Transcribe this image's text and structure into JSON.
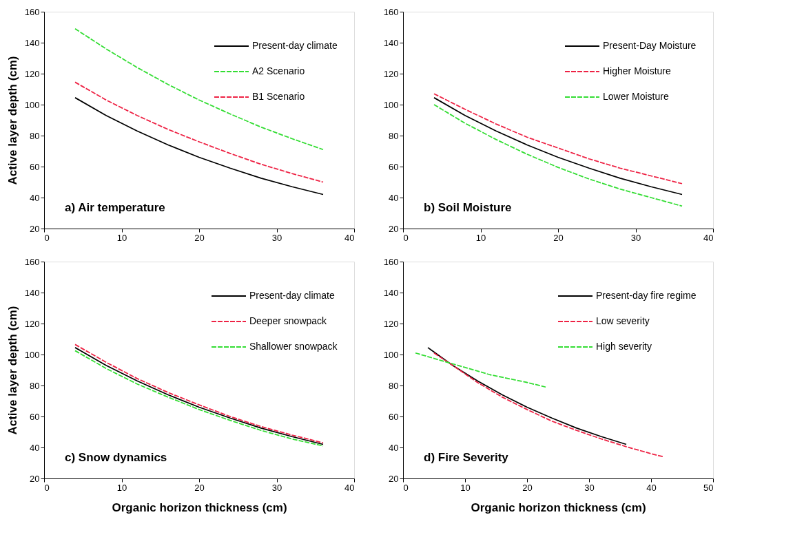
{
  "chart_data": [
    {
      "type": "line",
      "ylabel": "Active layer depth (cm)",
      "xlim": [
        0,
        40
      ],
      "xticks": [
        0,
        10,
        20,
        30,
        40
      ],
      "ylim": [
        20,
        160
      ],
      "yticks": [
        20,
        40,
        60,
        80,
        100,
        120,
        140,
        160
      ],
      "grid": false,
      "legend": "top right",
      "annotations": [
        "a) Air temperature"
      ],
      "x": [
        4,
        8,
        12,
        16,
        20,
        24,
        28,
        32,
        36
      ],
      "series": [
        {
          "name": "Present-day climate",
          "color": "#000000",
          "line_style": "solid",
          "values": [
            104.5,
            93,
            83,
            74,
            66,
            59,
            52.5,
            47,
            42
          ]
        },
        {
          "name": "A2 Scenario",
          "color": "#33dd33",
          "line_style": "dashed",
          "values": [
            149,
            136,
            124,
            113,
            103,
            94,
            85.5,
            78,
            71
          ]
        },
        {
          "name": "B1 Scenario",
          "color": "#ee2244",
          "line_style": "dashed",
          "values": [
            114.5,
            103,
            93,
            84,
            76,
            68.5,
            61.5,
            55.5,
            50
          ]
        }
      ]
    },
    {
      "type": "line",
      "xlim": [
        0,
        40
      ],
      "xticks": [
        0,
        10,
        20,
        30,
        40
      ],
      "ylim": [
        20,
        160
      ],
      "yticks": [
        20,
        40,
        60,
        80,
        100,
        120,
        140,
        160
      ],
      "grid": false,
      "legend": "top right",
      "annotations": [
        "b) Soil Moisture"
      ],
      "x": [
        4,
        8,
        12,
        16,
        20,
        24,
        28,
        32,
        36
      ],
      "series": [
        {
          "name": "Present-Day Moisture",
          "color": "#000000",
          "line_style": "solid",
          "values": [
            104.5,
            93,
            83,
            74,
            66,
            59,
            52.5,
            47,
            42
          ]
        },
        {
          "name": "Higher Moisture",
          "color": "#ee2244",
          "line_style": "dashed",
          "values": [
            107,
            97,
            87.5,
            79,
            72,
            65,
            59,
            54,
            49
          ]
        },
        {
          "name": "Lower Moisture",
          "color": "#33dd33",
          "line_style": "dashed",
          "values": [
            100,
            88,
            77.5,
            68,
            59.5,
            52,
            45.5,
            40,
            34.5
          ]
        }
      ]
    },
    {
      "type": "line",
      "xlabel": "Organic horizon thickness (cm)",
      "ylabel": "Active layer depth (cm)",
      "xlim": [
        0,
        40
      ],
      "xticks": [
        0,
        10,
        20,
        30,
        40
      ],
      "ylim": [
        20,
        160
      ],
      "yticks": [
        20,
        40,
        60,
        80,
        100,
        120,
        140,
        160
      ],
      "grid": false,
      "legend": "top right",
      "annotations": [
        "c) Snow dynamics"
      ],
      "x": [
        4,
        8,
        12,
        16,
        20,
        24,
        28,
        32,
        36
      ],
      "series": [
        {
          "name": "Present-day climate",
          "color": "#000000",
          "line_style": "solid",
          "values": [
            104.5,
            93,
            83,
            74,
            66,
            59,
            52.5,
            47,
            42
          ]
        },
        {
          "name": "Deeper snowpack",
          "color": "#ee2244",
          "line_style": "dashed",
          "values": [
            106.5,
            95,
            84.5,
            75.5,
            67.5,
            60,
            53.5,
            48,
            43
          ]
        },
        {
          "name": "Shallower snowpack",
          "color": "#33dd33",
          "line_style": "dashed",
          "values": [
            102.5,
            91,
            81,
            72.5,
            64.5,
            57.5,
            51,
            45.5,
            41
          ]
        }
      ]
    },
    {
      "type": "line",
      "xlabel": "Organic horizon thickness (cm)",
      "xlim": [
        0,
        50
      ],
      "xticks": [
        0,
        10,
        20,
        30,
        40,
        50
      ],
      "ylim": [
        20,
        160
      ],
      "yticks": [
        20,
        40,
        60,
        80,
        100,
        120,
        140,
        160
      ],
      "grid": false,
      "legend": "top right",
      "annotations": [
        "d) Fire Severity"
      ],
      "x": [
        4,
        8,
        12,
        16,
        20,
        24,
        28,
        32,
        36
      ],
      "series": [
        {
          "name": "Present-day fire regime",
          "color": "#000000",
          "line_style": "solid",
          "values": [
            104.5,
            93,
            83,
            74,
            66,
            59,
            52.5,
            47,
            42
          ]
        },
        {
          "name": "Low severity",
          "color": "#ee2244",
          "line_style": "dashed",
          "x": [
            5,
            8,
            12,
            16,
            20,
            24,
            28,
            32,
            36,
            40,
            42
          ],
          "values": [
            101,
            93,
            82,
            72.5,
            64.5,
            57,
            51,
            45.5,
            40.5,
            36,
            34
          ]
        },
        {
          "name": "High severity",
          "color": "#33dd33",
          "line_style": "dashed",
          "x": [
            2,
            8,
            14,
            20,
            23
          ],
          "values": [
            101,
            94,
            87,
            82,
            79
          ]
        }
      ]
    }
  ]
}
